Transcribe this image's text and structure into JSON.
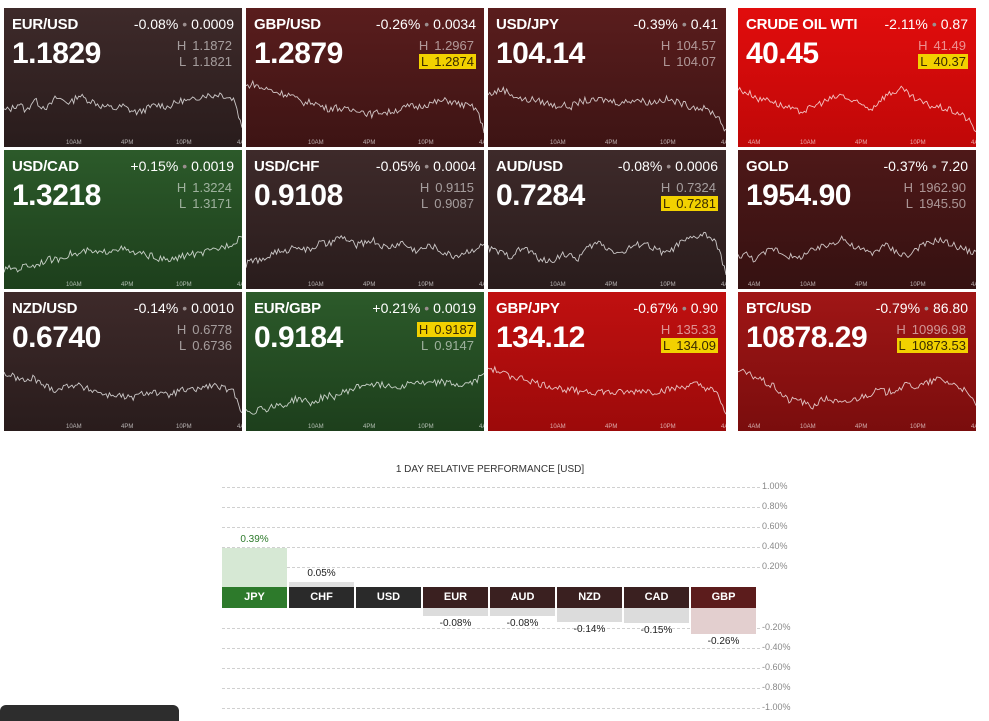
{
  "tiles": [
    {
      "symbol": "EUR/USD",
      "change_pct": "-0.08%",
      "change_abs": "0.0009",
      "price": "1.1829",
      "high": "1.1872",
      "low": "1.1821",
      "theme": "g-dark",
      "hit": "",
      "axis": [
        "10AM",
        "4PM",
        "10PM",
        "4A"
      ],
      "series": [
        0.42,
        0.45,
        0.55,
        0.4,
        0.62,
        0.5,
        0.48,
        0.65,
        0.6,
        0.55,
        0.7,
        0.62,
        0.58,
        0.5,
        0.48,
        0.45,
        0.5,
        0.42,
        0.38,
        0.44,
        0.5,
        0.52,
        0.48,
        0.55,
        0.6,
        0.58,
        0.65,
        0.7,
        0.68,
        0.72,
        0.66,
        0.62,
        0.1
      ]
    },
    {
      "symbol": "GBP/USD",
      "change_pct": "-0.26%",
      "change_abs": "0.0034",
      "price": "1.2879",
      "high": "1.2967",
      "low": "1.2874",
      "theme": "g-maroon",
      "hit": "low",
      "axis": [
        "10AM",
        "4PM",
        "10PM",
        "4A"
      ],
      "series": [
        0.85,
        0.9,
        0.82,
        0.8,
        0.75,
        0.72,
        0.7,
        0.6,
        0.55,
        0.58,
        0.5,
        0.45,
        0.48,
        0.44,
        0.42,
        0.45,
        0.38,
        0.35,
        0.4,
        0.38,
        0.42,
        0.45,
        0.5,
        0.48,
        0.52,
        0.55,
        0.58,
        0.6,
        0.56,
        0.52,
        0.5,
        0.45,
        0.05
      ]
    },
    {
      "symbol": "USD/JPY",
      "change_pct": "-0.39%",
      "change_abs": "0.41",
      "price": "104.14",
      "high": "104.57",
      "low": "104.07",
      "theme": "g-maroon",
      "hit": "",
      "axis": [
        "10AM",
        "4PM",
        "10PM",
        "4A"
      ],
      "series": [
        0.7,
        0.75,
        0.8,
        0.72,
        0.65,
        0.6,
        0.62,
        0.58,
        0.55,
        0.5,
        0.52,
        0.48,
        0.55,
        0.6,
        0.58,
        0.62,
        0.6,
        0.58,
        0.55,
        0.6,
        0.62,
        0.58,
        0.56,
        0.6,
        0.62,
        0.58,
        0.55,
        0.5,
        0.48,
        0.45,
        0.4,
        0.3,
        0.05
      ]
    },
    {
      "symbol": "CRUDE OIL WTI",
      "change_pct": "-2.11%",
      "change_abs": "0.87",
      "price": "40.45",
      "high": "41.49",
      "low": "40.37",
      "theme": "g-bright",
      "hit": "low",
      "axis": [
        "4AM",
        "10AM",
        "4PM",
        "10PM",
        "4A"
      ],
      "series": [
        0.8,
        0.75,
        0.7,
        0.6,
        0.65,
        0.55,
        0.5,
        0.45,
        0.4,
        0.42,
        0.48,
        0.55,
        0.6,
        0.65,
        0.7,
        0.6,
        0.55,
        0.5,
        0.45,
        0.6,
        0.7,
        0.75,
        0.8,
        0.7,
        0.6,
        0.55,
        0.5,
        0.48,
        0.45,
        0.4,
        0.35,
        0.25,
        0.05
      ]
    },
    {
      "symbol": "USD/CAD",
      "change_pct": "+0.15%",
      "change_abs": "0.0019",
      "price": "1.3218",
      "high": "1.3224",
      "low": "1.3171",
      "theme": "g-green",
      "hit": "",
      "axis": [
        "10AM",
        "4PM",
        "10PM",
        "4A"
      ],
      "series": [
        0.1,
        0.15,
        0.12,
        0.2,
        0.18,
        0.25,
        0.3,
        0.28,
        0.35,
        0.4,
        0.38,
        0.45,
        0.42,
        0.4,
        0.45,
        0.5,
        0.48,
        0.42,
        0.4,
        0.38,
        0.35,
        0.3,
        0.28,
        0.3,
        0.35,
        0.4,
        0.38,
        0.42,
        0.45,
        0.5,
        0.55,
        0.6,
        0.75
      ]
    },
    {
      "symbol": "USD/CHF",
      "change_pct": "-0.05%",
      "change_abs": "0.0004",
      "price": "0.9108",
      "high": "0.9115",
      "low": "0.9087",
      "theme": "g-dark",
      "hit": "",
      "axis": [
        "10AM",
        "4PM",
        "10PM",
        "4A"
      ],
      "series": [
        0.2,
        0.3,
        0.25,
        0.35,
        0.45,
        0.4,
        0.5,
        0.55,
        0.45,
        0.5,
        0.6,
        0.55,
        0.65,
        0.7,
        0.6,
        0.55,
        0.6,
        0.65,
        0.55,
        0.5,
        0.55,
        0.6,
        0.5,
        0.45,
        0.5,
        0.55,
        0.45,
        0.4,
        0.35,
        0.4,
        0.45,
        0.5,
        0.55
      ]
    },
    {
      "symbol": "AUD/USD",
      "change_pct": "-0.08%",
      "change_abs": "0.0006",
      "price": "0.7284",
      "high": "0.7324",
      "low": "0.7281",
      "theme": "g-dark",
      "hit": "low",
      "axis": [
        "10AM",
        "4PM",
        "10PM",
        "4A"
      ],
      "series": [
        0.5,
        0.45,
        0.4,
        0.35,
        0.45,
        0.5,
        0.4,
        0.3,
        0.25,
        0.3,
        0.4,
        0.35,
        0.3,
        0.45,
        0.55,
        0.6,
        0.5,
        0.45,
        0.4,
        0.5,
        0.55,
        0.6,
        0.5,
        0.45,
        0.4,
        0.5,
        0.6,
        0.65,
        0.7,
        0.75,
        0.68,
        0.5,
        0.05
      ]
    },
    {
      "symbol": "GOLD",
      "change_pct": "-0.37%",
      "change_abs": "7.20",
      "price": "1954.90",
      "high": "1962.90",
      "low": "1945.50",
      "theme": "g-darkred",
      "hit": "",
      "axis": [
        "4AM",
        "10AM",
        "4PM",
        "10PM",
        "4A"
      ],
      "series": [
        0.35,
        0.4,
        0.3,
        0.35,
        0.45,
        0.5,
        0.4,
        0.35,
        0.3,
        0.4,
        0.45,
        0.5,
        0.55,
        0.6,
        0.7,
        0.55,
        0.5,
        0.45,
        0.4,
        0.5,
        0.55,
        0.45,
        0.4,
        0.35,
        0.5,
        0.55,
        0.6,
        0.65,
        0.6,
        0.55,
        0.5,
        0.45,
        0.4
      ]
    },
    {
      "symbol": "NZD/USD",
      "change_pct": "-0.14%",
      "change_abs": "0.0010",
      "price": "0.6740",
      "high": "0.6778",
      "low": "0.6736",
      "theme": "g-dark",
      "hit": "",
      "axis": [
        "10AM",
        "4PM",
        "10PM",
        "4A"
      ],
      "series": [
        0.8,
        0.75,
        0.7,
        0.65,
        0.72,
        0.6,
        0.55,
        0.5,
        0.55,
        0.6,
        0.58,
        0.52,
        0.5,
        0.45,
        0.4,
        0.42,
        0.38,
        0.35,
        0.4,
        0.45,
        0.48,
        0.42,
        0.4,
        0.45,
        0.5,
        0.48,
        0.52,
        0.55,
        0.58,
        0.55,
        0.5,
        0.45,
        0.1
      ]
    },
    {
      "symbol": "EUR/GBP",
      "change_pct": "+0.21%",
      "change_abs": "0.0019",
      "price": "0.9184",
      "high": "0.9187",
      "low": "0.9147",
      "theme": "g-green",
      "hit": "high",
      "axis": [
        "10AM",
        "4PM",
        "10PM",
        "4A"
      ],
      "series": [
        0.15,
        0.1,
        0.2,
        0.15,
        0.25,
        0.2,
        0.3,
        0.35,
        0.3,
        0.25,
        0.35,
        0.4,
        0.38,
        0.45,
        0.5,
        0.55,
        0.6,
        0.62,
        0.58,
        0.6,
        0.55,
        0.58,
        0.62,
        0.65,
        0.6,
        0.62,
        0.65,
        0.62,
        0.6,
        0.58,
        0.62,
        0.65,
        0.85
      ]
    },
    {
      "symbol": "GBP/JPY",
      "change_pct": "-0.67%",
      "change_abs": "0.90",
      "price": "134.12",
      "high": "135.33",
      "low": "134.09",
      "theme": "g-bright2",
      "hit": "low",
      "axis": [
        "10AM",
        "4PM",
        "10PM",
        "4A"
      ],
      "series": [
        0.9,
        0.85,
        0.8,
        0.75,
        0.72,
        0.7,
        0.65,
        0.6,
        0.58,
        0.55,
        0.52,
        0.5,
        0.48,
        0.5,
        0.45,
        0.48,
        0.46,
        0.44,
        0.46,
        0.45,
        0.48,
        0.5,
        0.46,
        0.48,
        0.5,
        0.52,
        0.55,
        0.58,
        0.6,
        0.55,
        0.5,
        0.4,
        0.05
      ]
    },
    {
      "symbol": "BTC/USD",
      "change_pct": "-0.79%",
      "change_abs": "86.80",
      "price": "10878.29",
      "high": "10996.98",
      "low": "10873.53",
      "theme": "g-red",
      "hit": "low",
      "axis": [
        "4AM",
        "10AM",
        "4PM",
        "10PM",
        "4A"
      ],
      "series": [
        0.85,
        0.8,
        0.75,
        0.7,
        0.6,
        0.55,
        0.4,
        0.3,
        0.35,
        0.25,
        0.2,
        0.3,
        0.35,
        0.3,
        0.25,
        0.3,
        0.35,
        0.4,
        0.45,
        0.5,
        0.45,
        0.5,
        0.55,
        0.6,
        0.55,
        0.6,
        0.65,
        0.7,
        0.65,
        0.6,
        0.55,
        0.4,
        0.25
      ]
    }
  ],
  "perf": {
    "title": "1 DAY RELATIVE PERFORMANCE  [USD]",
    "y_ticks": [
      "1.00%",
      "0.80%",
      "0.60%",
      "0.40%",
      "0.20%",
      "-0.20%",
      "-0.40%",
      "-0.60%",
      "-0.80%",
      "-1.00%"
    ],
    "currencies": [
      {
        "code": "JPY",
        "value": 0.39,
        "label": "0.39%",
        "color": "#2d7a2b"
      },
      {
        "code": "CHF",
        "value": 0.05,
        "label": "0.05%",
        "color": "#2a2a2a"
      },
      {
        "code": "USD",
        "value": 0,
        "label": "",
        "color": "#2a2a2a"
      },
      {
        "code": "EUR",
        "value": -0.08,
        "label": "-0.08%",
        "color": "#3a2020"
      },
      {
        "code": "AUD",
        "value": -0.08,
        "label": "-0.08%",
        "color": "#3a2020"
      },
      {
        "code": "NZD",
        "value": -0.14,
        "label": "-0.14%",
        "color": "#3a2020"
      },
      {
        "code": "CAD",
        "value": -0.15,
        "label": "-0.15%",
        "color": "#3a2020"
      },
      {
        "code": "GBP",
        "value": -0.26,
        "label": "-0.26%",
        "color": "#5c1c1c"
      }
    ]
  }
}
